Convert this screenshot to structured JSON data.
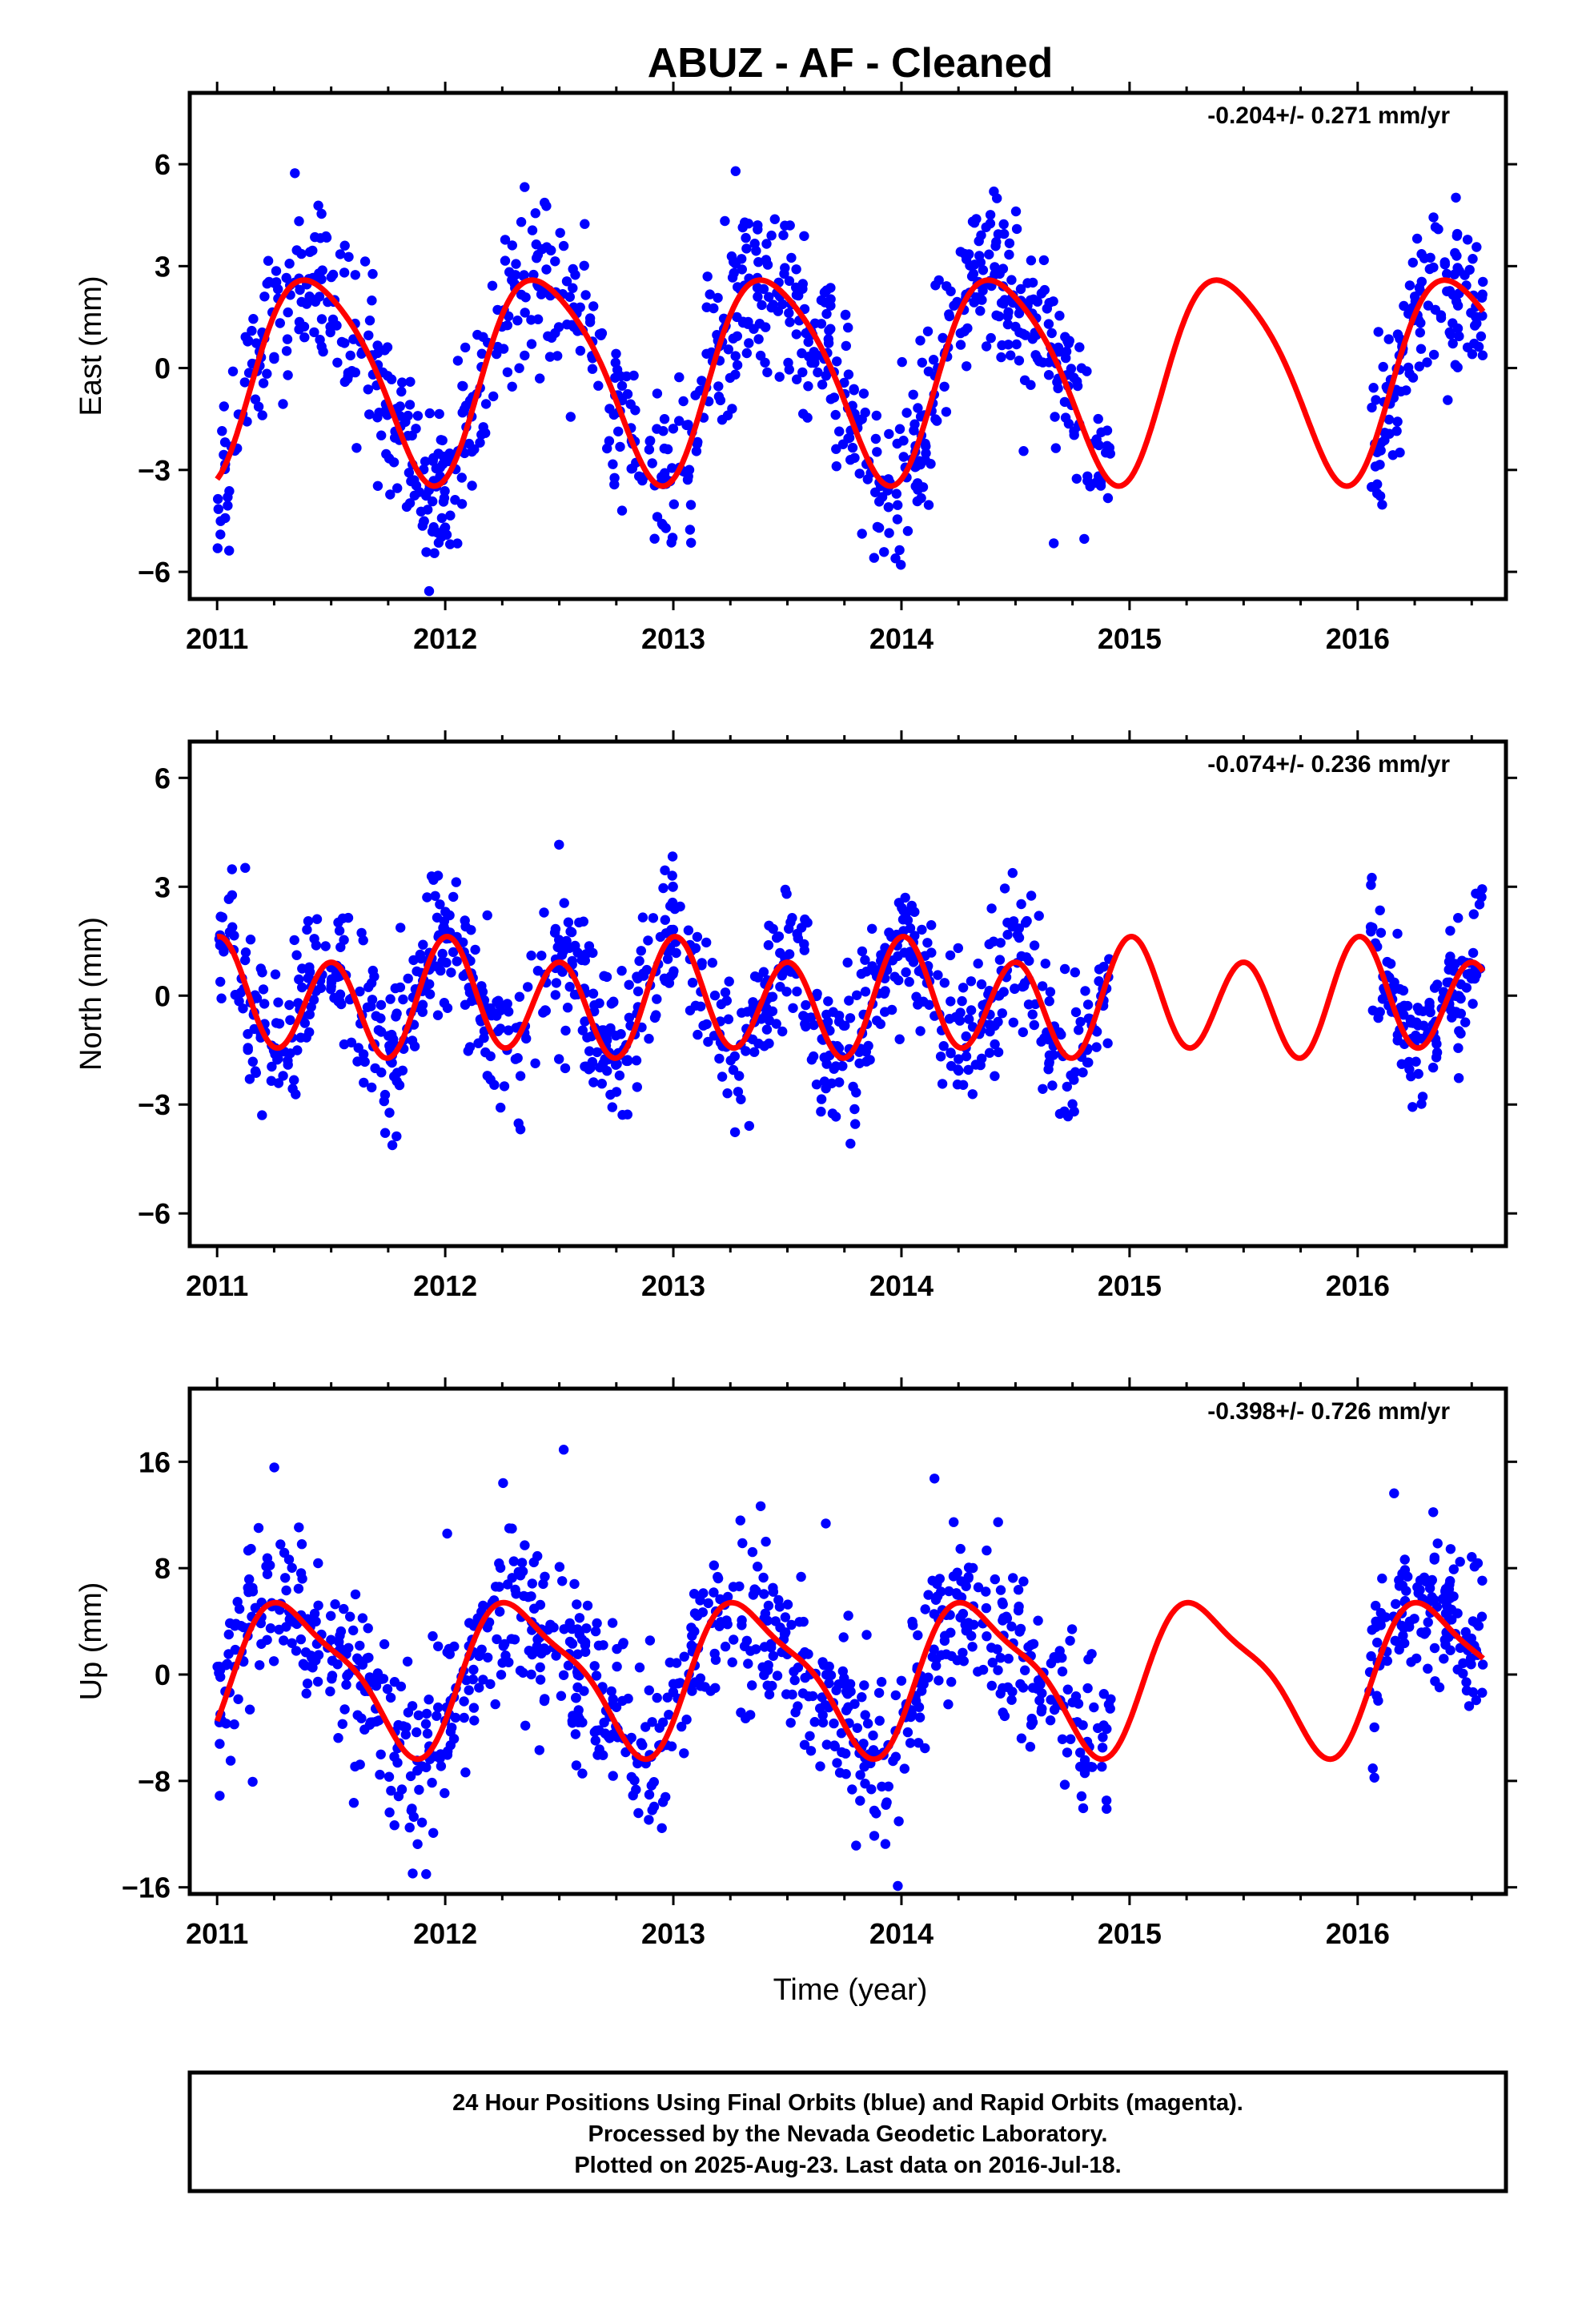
{
  "title": "ABUZ  - AF - Cleaned",
  "xlabel": "Time (year)",
  "footer": [
    "24 Hour Positions Using Final Orbits (blue) and Rapid Orbits (magenta).",
    "Processed by the Nevada Geodetic Laboratory.",
    "Plotted on 2025-Aug-23. Last data on 2016-Jul-18."
  ],
  "colors": {
    "points": "#0000ff",
    "model": "#ff0000",
    "frame": "#000000"
  },
  "chart_data": [
    {
      "type": "scatter",
      "ylabel": "East (mm)",
      "rate": "-0.204+/- 0.271 mm/yr",
      "xlim": [
        2010.88,
        2016.65
      ],
      "ylim": [
        -6.8,
        8.1
      ],
      "xticks": [
        2011,
        2012,
        2013,
        2014,
        2015,
        2016
      ],
      "yticks": [
        -6,
        -3,
        0,
        3,
        6
      ],
      "grid": false,
      "model": {
        "name": "",
        "t0": 2011.0,
        "t1": 2016.55,
        "offset": -0.15,
        "annual": {
          "sin": 1.27,
          "cos": -2.67
        },
        "semiannual": {
          "sin": 0.05,
          "cos": -0.45
        }
      },
      "data": {
        "gaps": [
          [
            2014.92,
            2016.05
          ]
        ],
        "start": 2011.0,
        "end": 2016.55,
        "noise_sd": 1.25,
        "count": 1300
      }
    },
    {
      "type": "scatter",
      "ylabel": "North (mm)",
      "rate": "-0.074+/- 0.236 mm/yr",
      "xlim": [
        2010.88,
        2016.65
      ],
      "ylim": [
        -6.9,
        7.0
      ],
      "xticks": [
        2011,
        2012,
        2013,
        2014,
        2015,
        2016
      ],
      "yticks": [
        -6,
        -3,
        0,
        3,
        6
      ],
      "grid": false,
      "model": {
        "name": "",
        "t0": 2011.0,
        "t1": 2016.55,
        "offset": -0.15,
        "annual": {
          "sin": 0.15,
          "cos": 0.35
        },
        "semiannual": {
          "sin": 0.08,
          "cos": 1.42
        }
      },
      "data": {
        "gaps": [
          [
            2014.92,
            2016.05
          ]
        ],
        "start": 2011.0,
        "end": 2016.55,
        "noise_sd": 1.0,
        "count": 1300
      }
    },
    {
      "type": "scatter",
      "ylabel": "Up (mm)",
      "rate": "-0.398+/- 0.726 mm/yr",
      "xlim": [
        2010.88,
        2016.65
      ],
      "ylim": [
        -16.5,
        21.5
      ],
      "xticks": [
        2011,
        2012,
        2013,
        2014,
        2015,
        2016
      ],
      "yticks": [
        -16,
        -8,
        0,
        8,
        16
      ],
      "grid": false,
      "model": {
        "name": "",
        "t0": 2011.0,
        "t1": 2016.55,
        "offset": 0.0,
        "annual": {
          "sin": 4.6,
          "cos": -2.7
        },
        "semiannual": {
          "sin": 1.2,
          "cos": -0.8
        }
      },
      "data": {
        "gaps": [
          [
            2014.92,
            2016.05
          ]
        ],
        "start": 2011.0,
        "end": 2016.55,
        "noise_sd": 3.4,
        "count": 1300
      }
    }
  ]
}
